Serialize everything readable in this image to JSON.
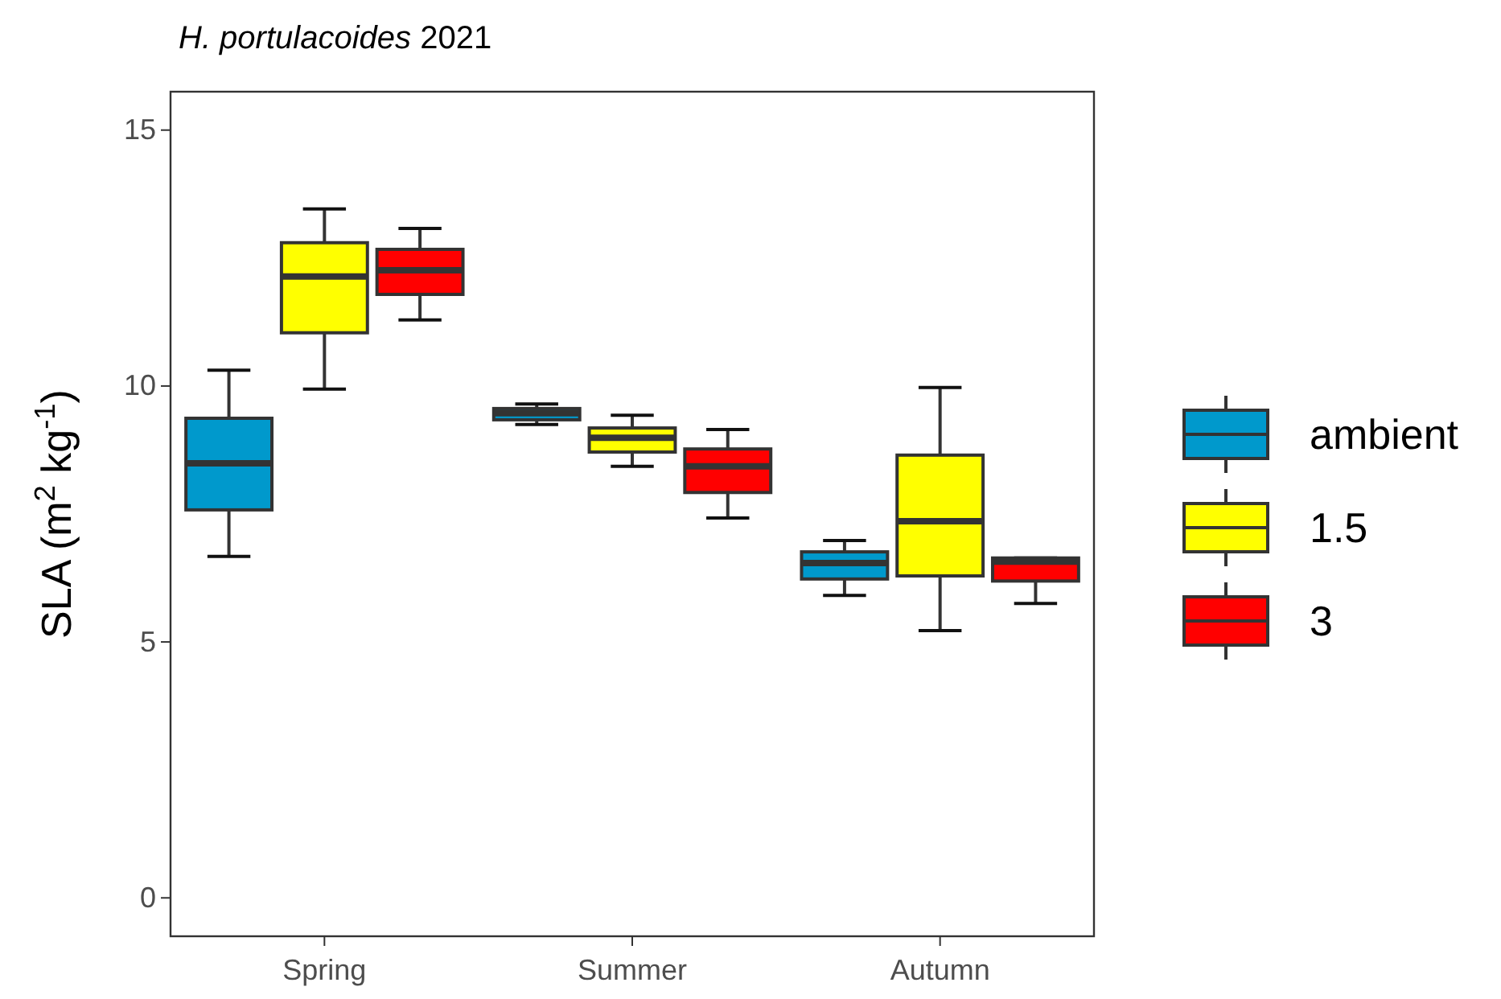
{
  "chart_data": {
    "type": "box",
    "title": "H. portulacoides 2021",
    "ylabel": "SLA (m$^{2}$ kg$^{-1}$)",
    "categories": [
      "Spring",
      "Summer",
      "Autumn"
    ],
    "ylim": [
      -0.75,
      15.75
    ],
    "yticks": [
      0,
      5,
      10,
      15
    ],
    "grid": false,
    "legend": "right",
    "series": [
      {
        "name": "ambient",
        "color": "#0099cc",
        "boxes": [
          {
            "low": 6.67,
            "q1": 7.58,
            "median": 8.49,
            "q3": 9.37,
            "high": 10.31
          },
          {
            "low": 9.25,
            "q1": 9.34,
            "median": 9.47,
            "q3": 9.56,
            "high": 9.65
          },
          {
            "low": 5.91,
            "q1": 6.23,
            "median": 6.54,
            "q3": 6.76,
            "high": 6.98
          }
        ]
      },
      {
        "name": "1.5",
        "color": "#ffff00",
        "boxes": [
          {
            "low": 9.94,
            "q1": 11.04,
            "median": 12.14,
            "q3": 12.8,
            "high": 13.46
          },
          {
            "low": 8.43,
            "q1": 8.71,
            "median": 8.99,
            "q3": 9.18,
            "high": 9.43
          },
          {
            "low": 5.22,
            "q1": 6.29,
            "median": 7.36,
            "q3": 8.65,
            "high": 9.97
          }
        ]
      },
      {
        "name": "3",
        "color": "#ff0000",
        "boxes": [
          {
            "low": 11.29,
            "q1": 11.79,
            "median": 12.26,
            "q3": 12.67,
            "high": 13.08
          },
          {
            "low": 7.42,
            "q1": 7.92,
            "median": 8.43,
            "q3": 8.77,
            "high": 9.15
          },
          {
            "low": 5.75,
            "q1": 6.19,
            "median": 6.57,
            "q3": 6.64,
            "high": 6.64
          }
        ]
      }
    ]
  }
}
